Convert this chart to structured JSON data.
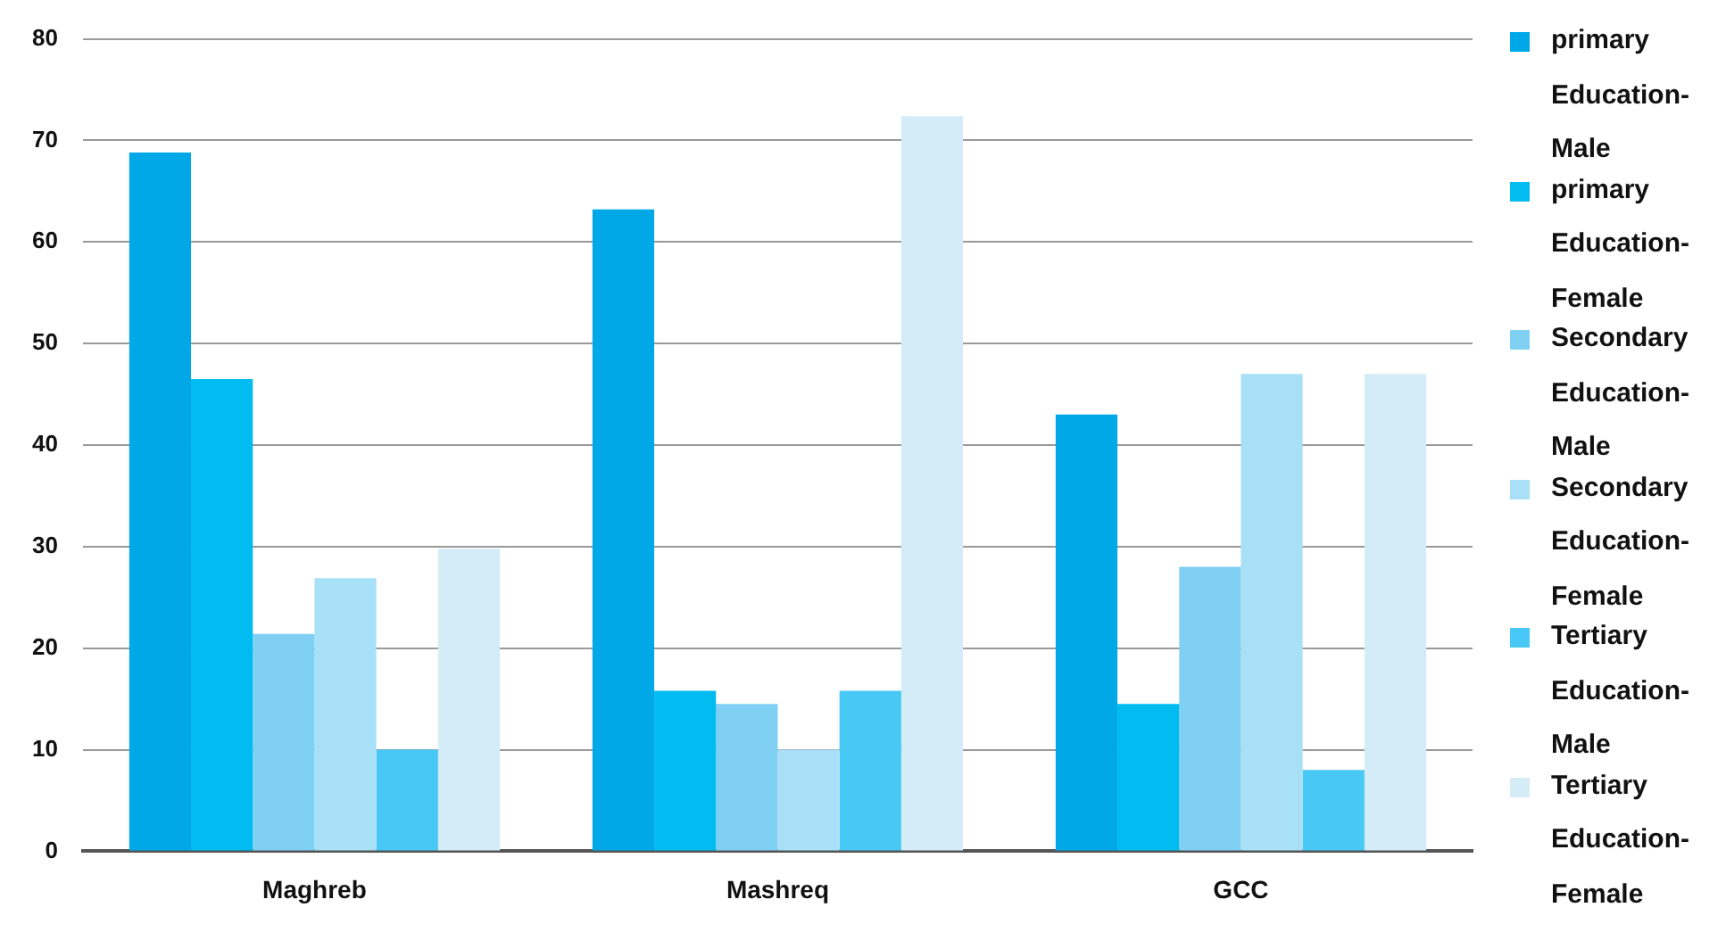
{
  "chart_data": {
    "type": "bar",
    "categories": [
      "Maghreb",
      "Mashreq",
      "GCC"
    ],
    "series": [
      {
        "name": "primary Education-Male",
        "color": "#00a8e8",
        "values": [
          68.8,
          63.2,
          43
        ]
      },
      {
        "name": "primary Education-Female",
        "color": "#00bcf0",
        "values": [
          46.5,
          15.8,
          14.5
        ]
      },
      {
        "name": "Secondary Education-Male",
        "color": "#80d0f4",
        "values": [
          21.4,
          14.5,
          28
        ]
      },
      {
        "name": "Secondary Education-Female",
        "color": "#a8e0f8",
        "values": [
          26.9,
          10,
          47
        ]
      },
      {
        "name": "Tertiary Education-Male",
        "color": "#48c8f4",
        "values": [
          10,
          15.8,
          8
        ]
      },
      {
        "name": "Tertiary Education-Female",
        "color": "#d4ecf8",
        "values": [
          29.8,
          72.4,
          47
        ]
      }
    ],
    "ylim": [
      0,
      80
    ],
    "yticks": [
      0,
      10,
      20,
      30,
      40,
      50,
      60,
      70,
      80
    ],
    "grid": "y",
    "legend": "right"
  }
}
